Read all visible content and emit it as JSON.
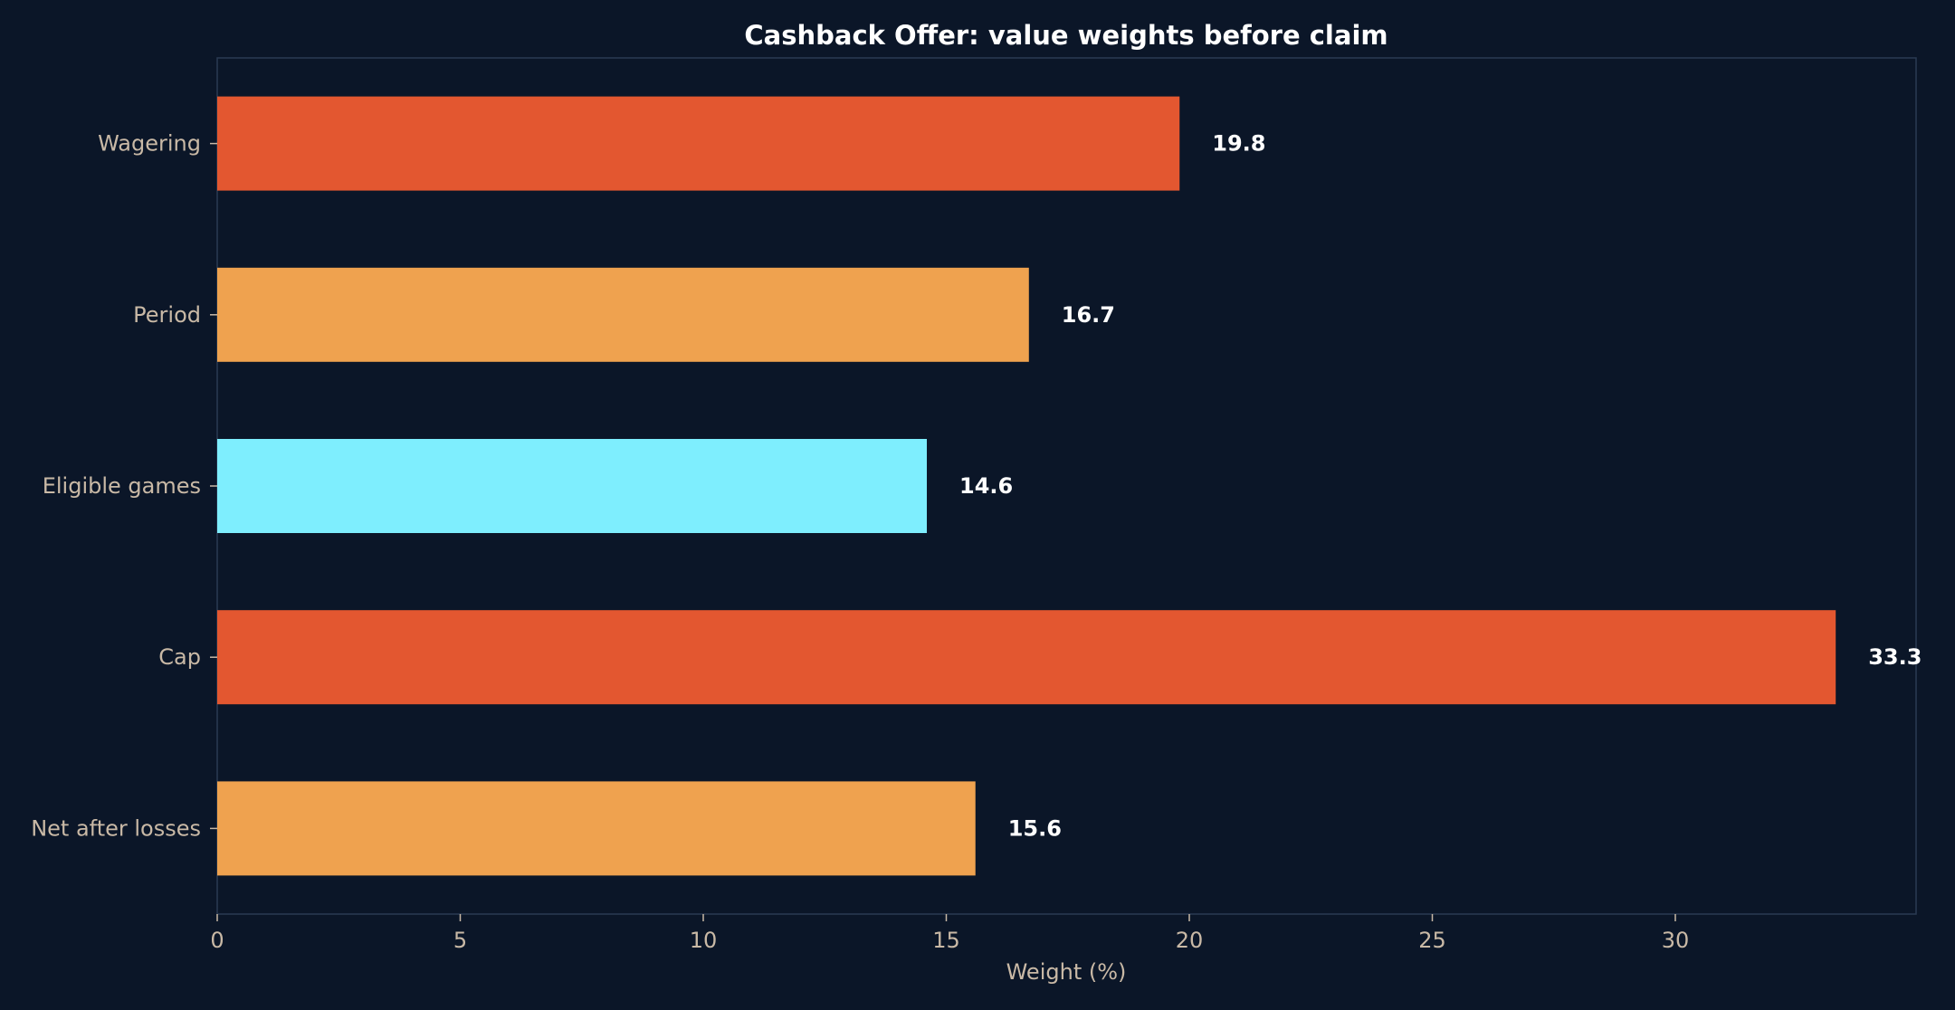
{
  "chart_data": {
    "type": "bar",
    "orientation": "horizontal",
    "title": "Cashback Offer: value weights before claim",
    "xlabel": "Weight (%)",
    "ylabel": "",
    "categories": [
      "Wagering",
      "Period",
      "Eligible games",
      "Cap",
      "Net after losses"
    ],
    "values": [
      19.8,
      16.7,
      14.6,
      33.3,
      15.6
    ],
    "value_labels": [
      "19.8",
      "16.7",
      "14.6",
      "33.3",
      "15.6"
    ],
    "colors": [
      "#e35730",
      "#efa24f",
      "#7eeefe",
      "#e35730",
      "#efa24f"
    ],
    "xlim": [
      0,
      35
    ],
    "xticks": [
      0,
      5,
      10,
      15,
      20,
      25,
      30
    ],
    "xtick_labels": [
      "0",
      "5",
      "10",
      "15",
      "20",
      "25",
      "30"
    ],
    "grid": false,
    "legend": "none",
    "background": "#0b1628"
  }
}
